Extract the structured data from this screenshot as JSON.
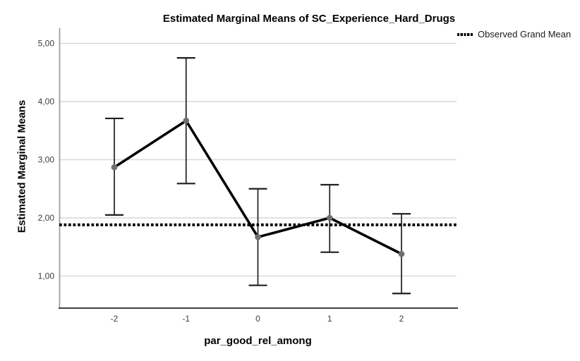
{
  "chart_data": {
    "type": "line",
    "title": "Estimated Marginal Means of SC_Experience_Hard_Drugs",
    "xlabel": "par_good_rel_among",
    "ylabel": "Estimated Marginal Means",
    "legend": [
      {
        "label": "Observed Grand Mean",
        "marker": "dotted-line"
      }
    ],
    "legend_position": "top-right",
    "categories": [
      "-2",
      "-1",
      "0",
      "1",
      "2"
    ],
    "series": [
      {
        "name": "Estimated Marginal Means",
        "values": [
          2.87,
          3.67,
          1.67,
          2.0,
          1.38
        ],
        "ci_low": [
          2.05,
          2.59,
          0.84,
          1.41,
          0.7
        ],
        "ci_high": [
          3.71,
          4.75,
          2.5,
          2.57,
          2.07
        ]
      }
    ],
    "grand_mean": 1.88,
    "y_ticks": [
      {
        "value": 1,
        "label": "1,00"
      },
      {
        "value": 2,
        "label": "2,00"
      },
      {
        "value": 3,
        "label": "3,00"
      },
      {
        "value": 4,
        "label": "4,00"
      },
      {
        "value": 5,
        "label": "5,00"
      }
    ],
    "ylim": [
      0.46,
      5.26
    ],
    "grid": "horizontal",
    "decimal_separator": ","
  },
  "colors": {
    "background": "#ffffff",
    "series_line": "#000000",
    "marker": "#6f6f6f",
    "error_bar": "#1f1f1f",
    "grand_mean_line": "#000000",
    "gridline": "#d9d9d9",
    "y_axis_line": "#9e9e9e",
    "x_axis_line": "#404040",
    "tick_text": "#3d3d3d",
    "title_text": "#000000"
  }
}
